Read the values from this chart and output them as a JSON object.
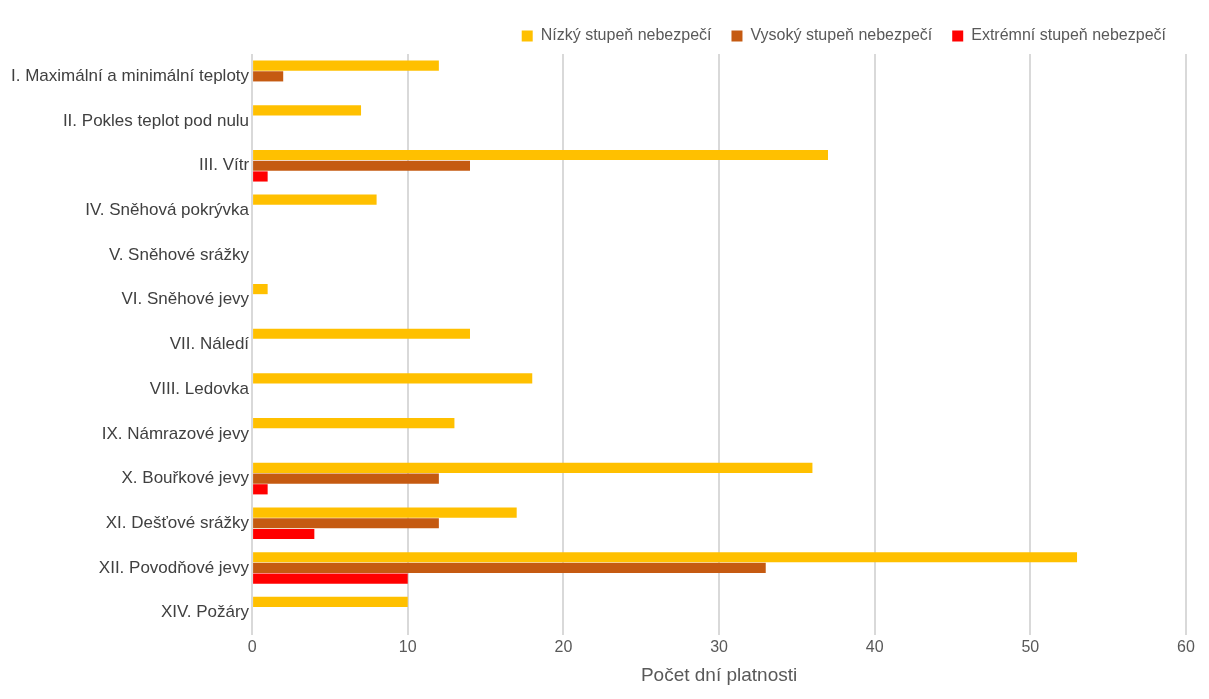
{
  "chart_data": {
    "type": "bar",
    "orientation": "horizontal",
    "xlabel": "Počet dní platnosti",
    "categories": [
      "I. Maximální a minimální teploty",
      "II. Pokles teplot pod nulu",
      "III. Vítr",
      "IV. Sněhová pokrývka",
      "V. Sněhové srážky",
      "VI. Sněhové jevy",
      "VII. Náledí",
      "VIII. Ledovka",
      "IX. Námrazové jevy",
      "X. Bouřkové jevy",
      "XI. Dešťové srážky",
      "XII. Povodňové jevy",
      "XIV. Požáry"
    ],
    "series": [
      {
        "name": "Nízký stupeň nebezpečí",
        "color": "#ffc000",
        "values": [
          12,
          7,
          37,
          8,
          0,
          1,
          14,
          18,
          13,
          36,
          17,
          53,
          10
        ]
      },
      {
        "name": "Vysoký stupeň nebezpečí",
        "color": "#c55a11",
        "values": [
          2,
          0,
          14,
          0,
          0,
          0,
          0,
          0,
          0,
          12,
          12,
          33,
          0
        ]
      },
      {
        "name": "Extrémní stupeň nebezpečí",
        "color": "#ff0000",
        "values": [
          0,
          0,
          1,
          0,
          0,
          0,
          0,
          0,
          0,
          1,
          4,
          10,
          0
        ]
      }
    ],
    "xlim": [
      0,
      60
    ],
    "xticks": [
      0,
      10,
      20,
      30,
      40,
      50,
      60
    ],
    "grid": "x",
    "legend": "top"
  }
}
